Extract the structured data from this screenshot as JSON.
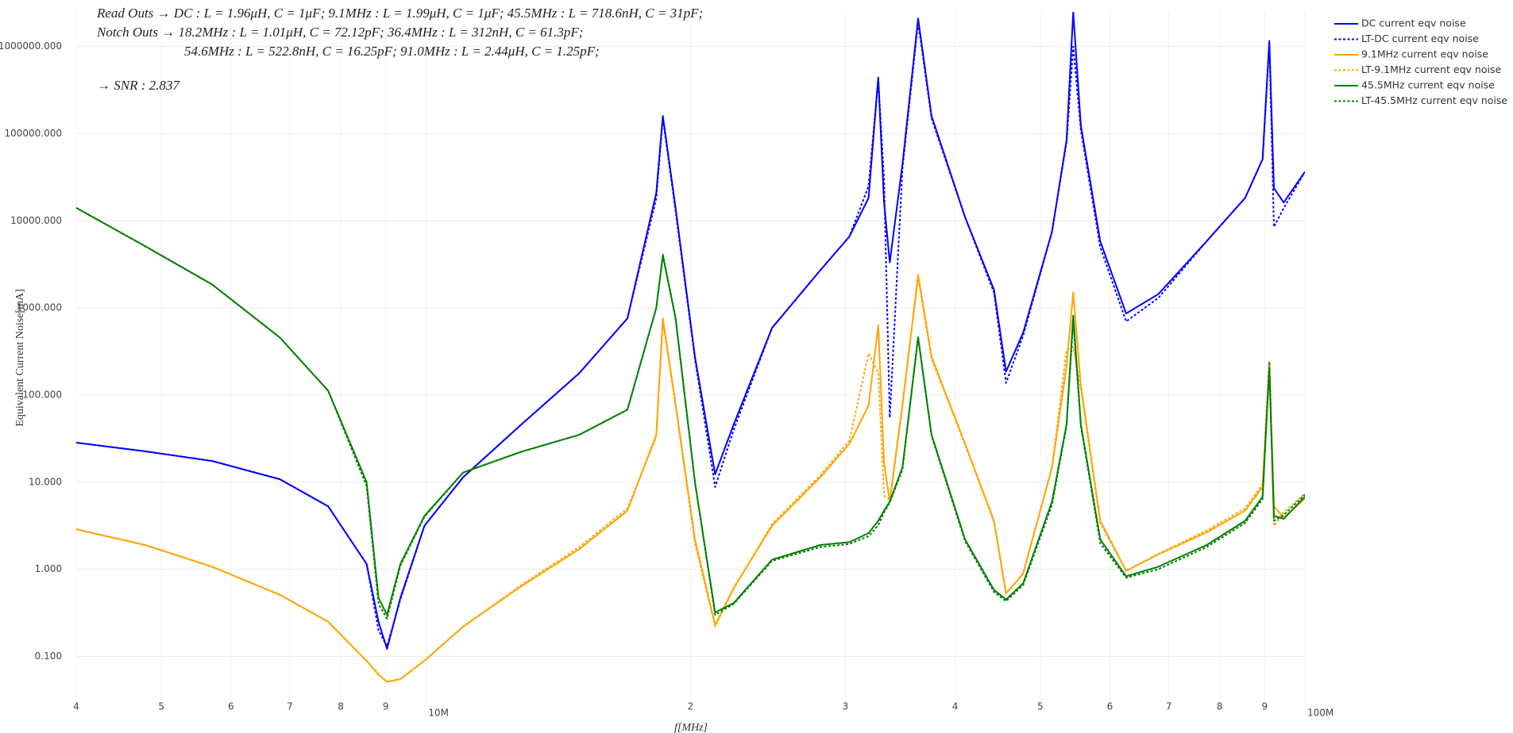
{
  "chart_data": {
    "type": "line",
    "annotations": [
      "Read Outs → DC : L = 1.96μH, C = 1μF;    9.1MHz : L = 1.99μH, C = 1μF;    45.5MHz : L = 718.6nH, C = 31pF;",
      "Notch Outs → 18.2MHz : L = 1.01μH, C = 72.12pF;    36.4MHz : L = 312nH, C = 61.3pF;",
      "54.6MHz : L = 522.8nH, C = 16.25pF;    91.0MHz : L = 2.44μH, C = 1.25pF;",
      "→ SNR : 2.837"
    ],
    "xlabel": "f[MHz]",
    "ylabel": "Equivalent Current Noise[mA]",
    "xlog": true,
    "ylog": true,
    "grid": true,
    "legend": "right",
    "xlim": [
      4,
      100
    ],
    "ylim": [
      0.0287,
      2500000
    ],
    "xticks": [
      4,
      5,
      6,
      7,
      8,
      9,
      {
        "value": 10,
        "label": "10M"
      },
      {
        "value": 20,
        "label": "2"
      },
      {
        "value": 30,
        "label": "3"
      },
      {
        "value": 40,
        "label": "4"
      },
      {
        "value": 50,
        "label": "5"
      },
      {
        "value": 60,
        "label": "6"
      },
      {
        "value": 70,
        "label": "7"
      },
      {
        "value": 80,
        "label": "8"
      },
      {
        "value": 90,
        "label": "9"
      },
      {
        "value": 100,
        "label": "100M"
      }
    ],
    "yticks": [
      {
        "value": 0.1,
        "label": "0.100"
      },
      {
        "value": 1,
        "label": "1.000"
      },
      {
        "value": 10,
        "label": "10.000"
      },
      {
        "value": 100,
        "label": "100.000"
      },
      {
        "value": 1000,
        "label": "1000.000"
      },
      {
        "value": 10000,
        "label": "10000.000"
      },
      {
        "value": 100000,
        "label": "100000.000"
      },
      {
        "value": 1000000,
        "label": "1000000.000"
      }
    ],
    "x": [
      4.0,
      4.79,
      5.71,
      6.82,
      7.74,
      8.56,
      8.83,
      9.03,
      9.35,
      9.96,
      11.02,
      12.84,
      14.94,
      16.95,
      18.28,
      18.6,
      19.23,
      20.23,
      21.33,
      22.39,
      24.76,
      28.1,
      30.32,
      31.88,
      32.7,
      33.2,
      33.7,
      34.84,
      36.3,
      37.6,
      41.05,
      44.28,
      45.7,
      47.8,
      51.56,
      53.56,
      54.5,
      55.6,
      58.5,
      62.6,
      68.1,
      77.3,
      85.5,
      89.5,
      91.1,
      92.2,
      94.6,
      100
    ],
    "series": [
      {
        "name": "DC current eqv noise",
        "color": "#0000ff",
        "dash": false,
        "values": [
          28.4,
          22.6,
          17.5,
          10.8,
          5.28,
          1.15,
          0.25,
          0.122,
          0.47,
          3.16,
          11.4,
          46,
          178,
          760,
          20900,
          160000,
          14100,
          275,
          12.3,
          46,
          590,
          2710,
          6610,
          18300,
          442000,
          16200,
          3330,
          44700,
          2100000,
          160000,
          11000,
          1620,
          186,
          519,
          7520,
          84500,
          2500000,
          124000,
          5830,
          863,
          1440,
          5830,
          18300,
          50800,
          1160000,
          23700,
          16200,
          36500
        ]
      },
      {
        "name": "LT-DC current eqv noise",
        "color": "#0000ff",
        "dash": true,
        "values": [
          28.4,
          22.6,
          17.5,
          10.8,
          5.28,
          1.15,
          0.2,
          0.13,
          0.45,
          3.16,
          11.4,
          46,
          178,
          760,
          18000,
          150000,
          13000,
          260,
          8.8,
          40,
          590,
          2710,
          6610,
          25000,
          420000,
          30000,
          55,
          40000,
          1900000,
          150000,
          11000,
          1500,
          138,
          480,
          7520,
          80000,
          1000000,
          110000,
          5000,
          700,
          1300,
          5830,
          18300,
          50800,
          1100000,
          8500,
          14000,
          36500
        ]
      },
      {
        "name": "9.1MHz current eqv noise",
        "color": "#ffa500",
        "dash": false,
        "values": [
          2.88,
          1.9,
          1.07,
          0.51,
          0.25,
          0.089,
          0.062,
          0.051,
          0.055,
          0.089,
          0.22,
          0.64,
          1.7,
          4.7,
          35,
          760,
          79,
          2.2,
          0.23,
          0.61,
          3.16,
          11.4,
          27.6,
          76,
          630,
          16.6,
          6.0,
          76,
          2400,
          275,
          27.6,
          3.6,
          0.53,
          0.89,
          14.8,
          213,
          1510,
          128,
          3.6,
          0.96,
          1.48,
          2.66,
          4.7,
          8.8,
          224,
          5.3,
          3.9,
          6.5
        ]
      },
      {
        "name": "LT-9.1MHz current eqv noise",
        "color": "#ffa500",
        "dash": true,
        "values": [
          2.88,
          1.9,
          1.07,
          0.51,
          0.25,
          0.089,
          0.062,
          0.051,
          0.055,
          0.089,
          0.22,
          0.66,
          1.8,
          5.0,
          33,
          700,
          75,
          2.0,
          0.22,
          0.6,
          3.3,
          12,
          30,
          300,
          180,
          7.0,
          6.3,
          80,
          2200,
          260,
          27,
          3.5,
          0.52,
          0.9,
          15,
          330,
          355,
          120,
          3.4,
          0.96,
          1.5,
          2.8,
          5.0,
          9.5,
          250,
          3.16,
          4.5,
          7.4
        ]
      },
      {
        "name": "45.5MHz current eqv noise",
        "color": "#008000",
        "dash": false,
        "values": [
          14100,
          5130,
          1860,
          457,
          112,
          10,
          0.47,
          0.3,
          1.15,
          4.1,
          12.9,
          22.4,
          35,
          68,
          1000,
          4000,
          760,
          10,
          0.32,
          0.41,
          1.29,
          1.9,
          2.05,
          2.6,
          3.6,
          4.7,
          6.0,
          14.8,
          457,
          35,
          2.2,
          0.58,
          0.45,
          0.69,
          6.0,
          46,
          820,
          46,
          2.2,
          0.83,
          1.07,
          1.9,
          3.6,
          6.8,
          203,
          4.1,
          3.8,
          6.8
        ]
      },
      {
        "name": "LT-45.5MHz current eqv noise",
        "color": "#008000",
        "dash": true,
        "values": [
          14100,
          5130,
          1860,
          457,
          112,
          9,
          0.4,
          0.27,
          1.1,
          4.0,
          12.9,
          22.4,
          35,
          68,
          1000,
          4100,
          780,
          10,
          0.3,
          0.4,
          1.25,
          1.8,
          1.95,
          2.4,
          3.2,
          4.5,
          5.8,
          14,
          470,
          34,
          2.1,
          0.55,
          0.43,
          0.66,
          5.5,
          44,
          700,
          44,
          2.0,
          0.8,
          1.0,
          1.8,
          3.4,
          6.4,
          240,
          3.6,
          4.2,
          7.2
        ]
      }
    ]
  }
}
